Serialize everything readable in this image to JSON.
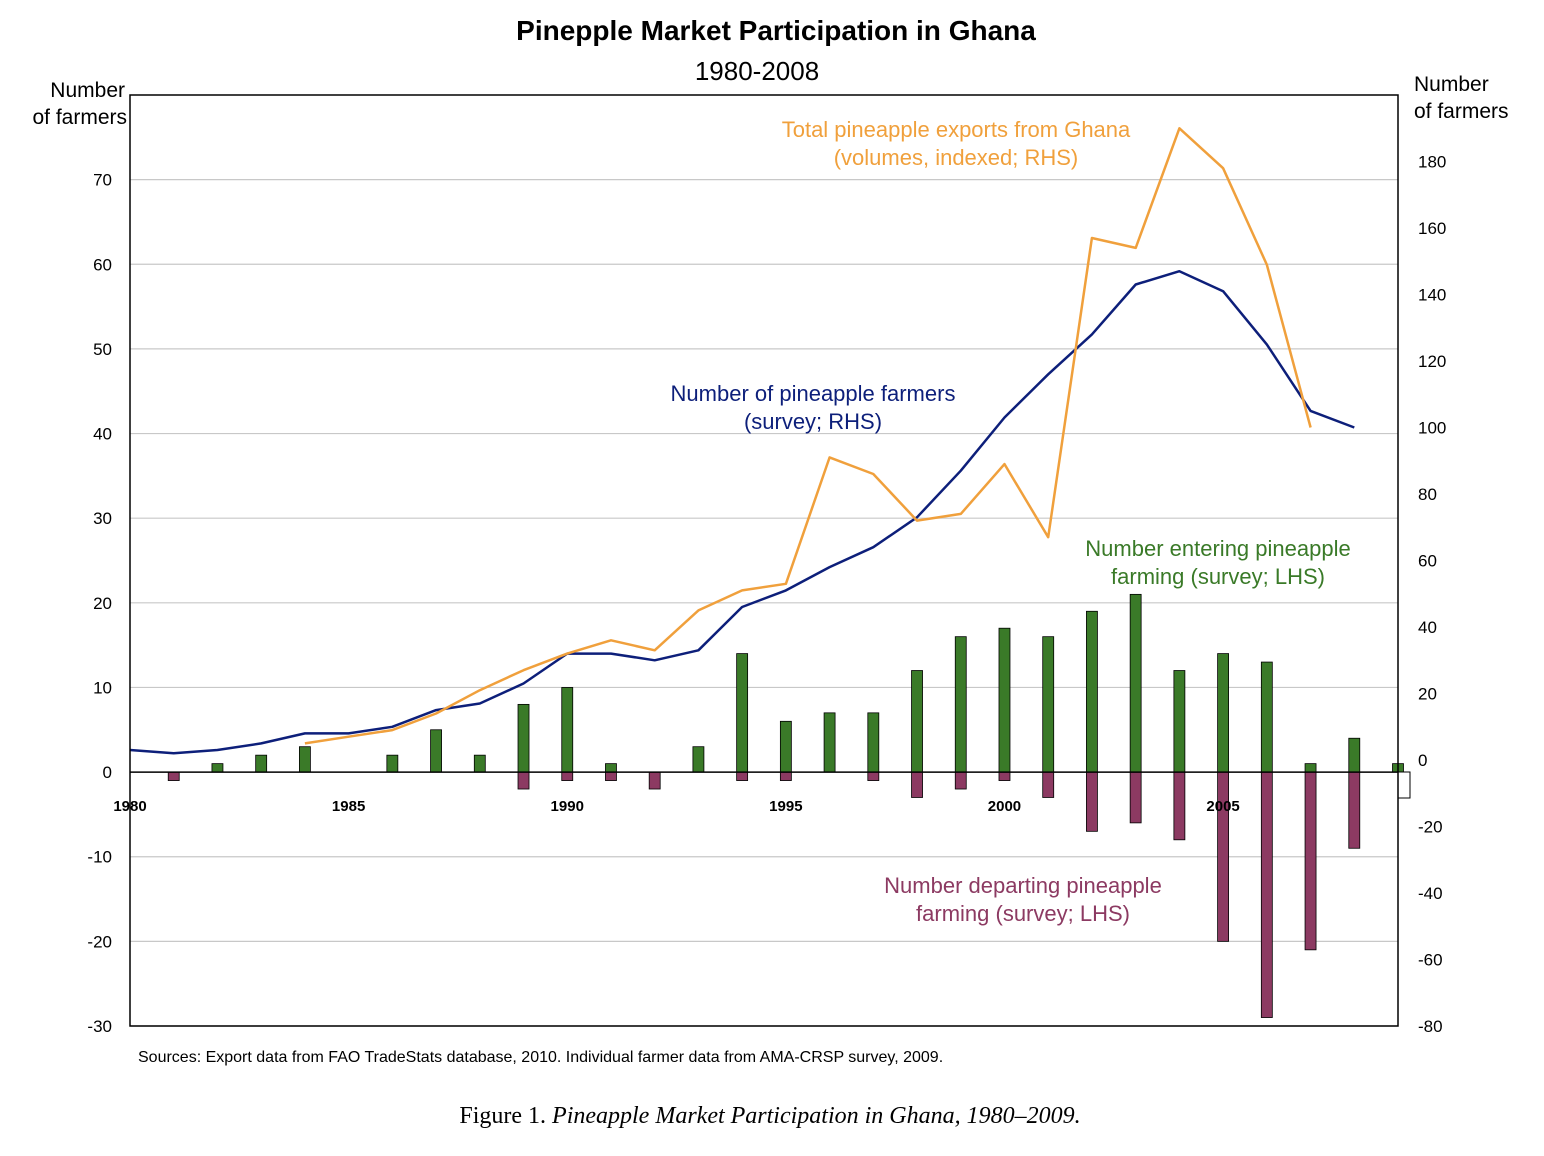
{
  "chart_data": {
    "type": "bar",
    "title": "Pinepple Market Participation in Ghana",
    "subtitle": "1980-2008",
    "left_axis": {
      "label_line1": "Number",
      "label_line2": "of farmers",
      "ylim": [
        -30,
        80
      ],
      "ticks": [
        -30,
        -20,
        -10,
        0,
        10,
        20,
        30,
        40,
        50,
        60,
        70
      ]
    },
    "right_axis": {
      "label_line1": "Number",
      "label_line2": "of farmers",
      "ylim": [
        -80,
        200
      ],
      "ticks": [
        -80,
        -60,
        -40,
        -20,
        0,
        20,
        40,
        60,
        80,
        100,
        120,
        140,
        160,
        180
      ]
    },
    "x_ticks": [
      1980,
      1985,
      1990,
      1995,
      2000,
      2005
    ],
    "xlim": [
      1980,
      2009
    ],
    "grid": true,
    "series": [
      {
        "name": "Number entering pineapple farming (survey; LHS)",
        "kind": "bar",
        "axis": "left",
        "color": "#3a7a28",
        "x": [
          1982,
          1983,
          1984,
          1986,
          1987,
          1988,
          1989,
          1990,
          1991,
          1993,
          1994,
          1995,
          1996,
          1997,
          1998,
          1999,
          2000,
          2001,
          2002,
          2003,
          2004,
          2005,
          2006,
          2007,
          2008,
          2009
        ],
        "values": [
          1,
          2,
          3,
          2,
          5,
          2,
          8,
          10,
          1,
          3,
          14,
          6,
          7,
          7,
          12,
          16,
          17,
          16,
          19,
          21,
          12,
          14,
          13,
          1,
          4,
          1
        ]
      },
      {
        "name": "Number departing pineapple farming (survey; LHS)",
        "kind": "bar",
        "axis": "left",
        "color": "#8c3a62",
        "x": [
          1981,
          1989,
          1990,
          1991,
          1992,
          1994,
          1995,
          1997,
          1998,
          1999,
          2000,
          2001,
          2002,
          2003,
          2004,
          2005,
          2006,
          2007,
          2008
        ],
        "values": [
          -1,
          -2,
          -1,
          -1,
          -2,
          -1,
          -1,
          -1,
          -3,
          -2,
          -1,
          -3,
          -7,
          -6,
          -8,
          -20,
          -29,
          -21,
          -9
        ]
      },
      {
        "name": "Number of pineapple farmers (survey; RHS)",
        "kind": "line",
        "axis": "right",
        "color": "#0d1f7a",
        "x": [
          1980,
          1981,
          1982,
          1983,
          1984,
          1985,
          1986,
          1987,
          1988,
          1989,
          1990,
          1991,
          1992,
          1993,
          1994,
          1995,
          1996,
          1997,
          1998,
          1999,
          2000,
          2001,
          2002,
          2003,
          2004,
          2005,
          2006,
          2007,
          2008
        ],
        "values": [
          3,
          2,
          3,
          5,
          8,
          8,
          10,
          15,
          17,
          23,
          32,
          32,
          30,
          33,
          46,
          51,
          58,
          64,
          73,
          87,
          103,
          116,
          128,
          143,
          147,
          141,
          125,
          105,
          100
        ]
      },
      {
        "name": "Total pineapple exports from Ghana (volumes, indexed; RHS)",
        "kind": "line",
        "axis": "right",
        "color": "#f0a03c",
        "x": [
          1984,
          1985,
          1986,
          1987,
          1988,
          1989,
          1990,
          1991,
          1992,
          1993,
          1994,
          1995,
          1996,
          1997,
          1998,
          1999,
          2000,
          2001,
          2002,
          2003,
          2004,
          2005,
          2006,
          2007
        ],
        "values": [
          5,
          7,
          9,
          14,
          21,
          27,
          32,
          36,
          33,
          45,
          51,
          53,
          91,
          86,
          72,
          74,
          89,
          67,
          157,
          154,
          190,
          178,
          149,
          100
        ]
      }
    ],
    "annotations": {
      "exports_line1": "Total pineapple exports from Ghana",
      "exports_line2": "(volumes, indexed; RHS)",
      "farmers_line1": "Number of pineapple farmers",
      "farmers_line2": "(survey; RHS)",
      "entering_line1": "Number entering pineapple",
      "entering_line2": "farming (survey; LHS)",
      "departing_line1": "Number departing pineapple",
      "departing_line2": "farming (survey; LHS)"
    },
    "source_note": "Sources: Export data from FAO TradeStats database, 2010. Individual farmer data from AMA-CRSP survey, 2009."
  },
  "caption": {
    "prefix": "Figure 1.",
    "text": "Pineapple Market Participation in Ghana, 1980–2009."
  }
}
